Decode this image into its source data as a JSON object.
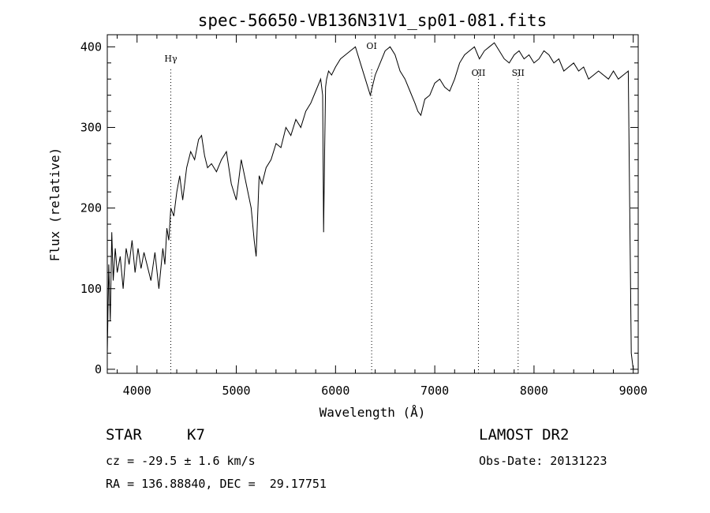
{
  "chart_data": {
    "type": "line",
    "title": "spec-56650-VB136N31V1_sp01-081.fits",
    "xlabel": "Wavelength (Å)",
    "ylabel": "Flux (relative)",
    "xlim": [
      3700,
      9050
    ],
    "ylim": [
      -5,
      415
    ],
    "x_ticks": [
      4000,
      5000,
      6000,
      7000,
      8000,
      9000
    ],
    "y_ticks": [
      0,
      100,
      200,
      300,
      400
    ],
    "grid": false,
    "legend": "none",
    "line_color": "#000000",
    "lines": [
      {
        "label": "Hγ",
        "x": 4340
      },
      {
        "label": "OI",
        "x": 6364
      },
      {
        "label": "OII",
        "x": 7440
      },
      {
        "label": "SII",
        "x": 7840
      }
    ],
    "series": [
      {
        "x": [
          3700,
          3715,
          3730,
          3745,
          3760,
          3780,
          3800,
          3830,
          3860,
          3890,
          3920,
          3950,
          3980,
          4010,
          4040,
          4070,
          4100,
          4140,
          4180,
          4220,
          4260,
          4280,
          4300,
          4320,
          4340,
          4370,
          4400,
          4430,
          4460,
          4500,
          4540,
          4580,
          4620,
          4650,
          4680,
          4710,
          4750,
          4800,
          4850,
          4900,
          4950,
          5000,
          5050,
          5100,
          5150,
          5180,
          5200,
          5230,
          5260,
          5300,
          5350,
          5400,
          5450,
          5500,
          5550,
          5600,
          5650,
          5700,
          5750,
          5800,
          5850,
          5870,
          5880,
          5890,
          5900,
          5910,
          5930,
          5960,
          6000,
          6050,
          6100,
          6150,
          6200,
          6250,
          6300,
          6350,
          6400,
          6450,
          6500,
          6550,
          6600,
          6650,
          6700,
          6750,
          6800,
          6830,
          6860,
          6880,
          6900,
          6950,
          7000,
          7050,
          7100,
          7150,
          7200,
          7250,
          7300,
          7350,
          7400,
          7450,
          7500,
          7550,
          7600,
          7650,
          7700,
          7750,
          7800,
          7850,
          7900,
          7950,
          8000,
          8050,
          8100,
          8150,
          8200,
          8250,
          8300,
          8350,
          8400,
          8450,
          8500,
          8550,
          8600,
          8650,
          8700,
          8750,
          8800,
          8850,
          8900,
          8950,
          8980,
          9000
        ],
        "values": [
          20,
          130,
          60,
          170,
          110,
          150,
          120,
          140,
          100,
          150,
          130,
          160,
          120,
          150,
          125,
          145,
          130,
          110,
          145,
          100,
          150,
          130,
          175,
          160,
          200,
          190,
          220,
          240,
          210,
          250,
          270,
          260,
          285,
          290,
          265,
          250,
          255,
          245,
          260,
          270,
          230,
          210,
          260,
          230,
          200,
          160,
          140,
          240,
          230,
          250,
          260,
          280,
          275,
          300,
          290,
          310,
          300,
          320,
          330,
          345,
          360,
          340,
          170,
          270,
          350,
          360,
          370,
          365,
          375,
          385,
          390,
          395,
          400,
          380,
          360,
          340,
          365,
          380,
          395,
          400,
          390,
          370,
          360,
          345,
          330,
          320,
          315,
          325,
          335,
          340,
          355,
          360,
          350,
          345,
          360,
          380,
          390,
          395,
          400,
          385,
          395,
          400,
          405,
          395,
          385,
          380,
          390,
          395,
          385,
          390,
          380,
          385,
          395,
          390,
          380,
          385,
          370,
          375,
          380,
          370,
          375,
          360,
          365,
          370,
          365,
          360,
          370,
          360,
          365,
          370,
          20,
          0
        ]
      }
    ],
    "annotations": {
      "object_class": "STAR",
      "subclass": "K7",
      "survey": "LAMOST DR2",
      "redshift": "cz = -29.5 ± 1.6 km/s",
      "obs_date": "Obs-Date: 20131223",
      "coords": "RA = 136.88840, DEC =  29.17751"
    }
  }
}
